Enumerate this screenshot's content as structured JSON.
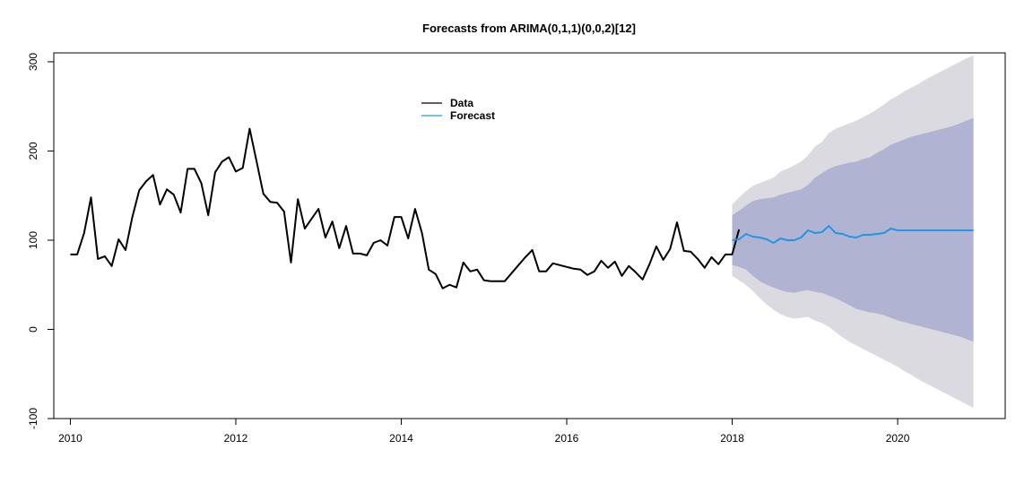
{
  "chart_data": {
    "type": "line",
    "title": "Forecasts from ARIMA(0,1,1)(0,0,2)[12]",
    "xlabel": "",
    "ylabel": "",
    "xlim": [
      2009.8,
      2021.3
    ],
    "ylim": [
      -100,
      310
    ],
    "x_ticks": [
      2010,
      2012,
      2014,
      2016,
      2018,
      2020
    ],
    "y_ticks": [
      -100,
      0,
      100,
      200,
      300
    ],
    "legend": {
      "position": "top-center",
      "entries": [
        "Data",
        "Forecast"
      ]
    },
    "colors": {
      "data": "#000000",
      "forecast": "#2196e8",
      "band80": "#b0b4d2",
      "band95": "#dadae0"
    },
    "series": [
      {
        "name": "Data",
        "x_start": 2010,
        "step": 0.0833333,
        "values": [
          84,
          84,
          108,
          148,
          79,
          82,
          71,
          101,
          89,
          126,
          156,
          166,
          173,
          140,
          157,
          151,
          131,
          180,
          180,
          164,
          128,
          176,
          188,
          193,
          177,
          181,
          225,
          189,
          152,
          143,
          142,
          132,
          75,
          146,
          113,
          124,
          135,
          103,
          121,
          91,
          116,
          85,
          85,
          83,
          97,
          100,
          94,
          126,
          126,
          102,
          135,
          108,
          67,
          62,
          46,
          50,
          47,
          75,
          65,
          67,
          55,
          54,
          54,
          54,
          63,
          72,
          81,
          89,
          65,
          65,
          74,
          72,
          70,
          68,
          67,
          61,
          65,
          77,
          69,
          76,
          60,
          71,
          64,
          56,
          73,
          93,
          78,
          90,
          120,
          88,
          87,
          79,
          69,
          81,
          73,
          84,
          84,
          112
        ]
      },
      {
        "name": "Forecast",
        "x_start": 2018,
        "step": 0.0833333,
        "values": [
          100,
          101,
          107,
          104,
          103,
          101,
          97,
          102,
          100,
          100,
          103,
          111,
          108,
          109,
          116,
          108,
          107,
          104,
          103,
          106,
          106,
          107,
          108,
          113,
          111,
          111,
          111,
          111,
          111,
          111,
          111,
          111,
          111,
          111,
          111,
          111
        ]
      }
    ],
    "interval_80": {
      "lower": [
        72,
        70,
        67,
        60,
        54,
        50,
        47,
        44,
        42,
        41,
        43,
        44,
        42,
        41,
        38,
        35,
        31,
        27,
        23,
        21,
        19,
        18,
        16,
        13,
        10,
        8,
        6,
        4,
        2,
        0,
        -2,
        -4,
        -6,
        -8,
        -11,
        -14
      ],
      "upper": [
        128,
        133,
        139,
        144,
        146,
        147,
        148,
        151,
        153,
        155,
        157,
        162,
        170,
        175,
        180,
        183,
        185,
        187,
        188,
        191,
        193,
        198,
        202,
        207,
        210,
        213,
        216,
        218,
        220,
        222,
        224,
        226,
        228,
        231,
        234,
        237
      ]
    },
    "interval_95": {
      "lower": [
        60,
        55,
        50,
        43,
        35,
        28,
        22,
        17,
        14,
        12,
        13,
        14,
        10,
        7,
        3,
        -3,
        -9,
        -14,
        -18,
        -22,
        -26,
        -30,
        -34,
        -38,
        -42,
        -47,
        -51,
        -56,
        -60,
        -64,
        -68,
        -72,
        -76,
        -80,
        -84,
        -88
      ],
      "upper": [
        140,
        148,
        155,
        161,
        164,
        167,
        170,
        177,
        180,
        184,
        188,
        195,
        205,
        210,
        220,
        225,
        228,
        231,
        234,
        238,
        242,
        247,
        252,
        258,
        262,
        267,
        271,
        275,
        280,
        284,
        288,
        292,
        296,
        300,
        304,
        307
      ]
    }
  }
}
